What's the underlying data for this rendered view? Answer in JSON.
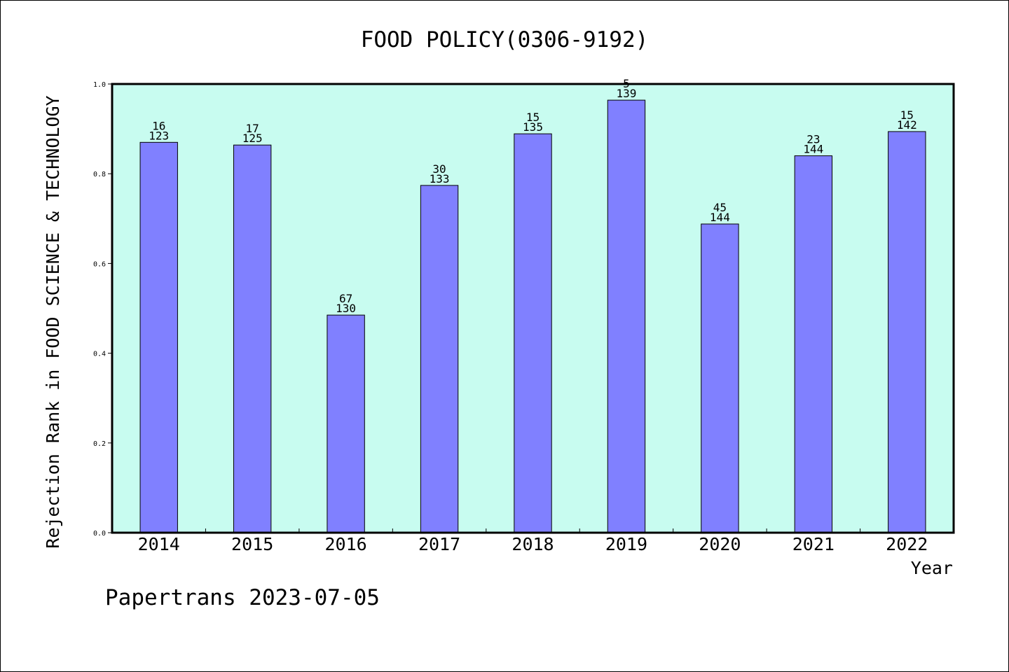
{
  "chart_data": {
    "type": "bar",
    "title": "FOOD POLICY(0306-9192)",
    "xlabel": "Year",
    "ylabel": "Rejection Rank in FOOD SCIENCE & TECHNOLOGY",
    "ylim": [
      0,
      1.0
    ],
    "yticks": [
      "0.0",
      "0.2",
      "0.4",
      "0.6",
      "0.8",
      "1.0"
    ],
    "categories": [
      "2014",
      "2015",
      "2016",
      "2017",
      "2018",
      "2019",
      "2020",
      "2021",
      "2022"
    ],
    "values": [
      0.87,
      0.864,
      0.485,
      0.774,
      0.889,
      0.964,
      0.688,
      0.84,
      0.894
    ],
    "rank_labels": [
      "16",
      "17",
      "67",
      "30",
      "15",
      "5",
      "45",
      "23",
      "15"
    ],
    "total_labels": [
      "123",
      "125",
      "130",
      "133",
      "135",
      "139",
      "144",
      "144",
      "142"
    ],
    "grid": false,
    "legend": "none",
    "colors": {
      "bar": "#8080ff",
      "plot_background": "#c8fcf0"
    },
    "footer": "Papertrans 2023-07-05"
  }
}
